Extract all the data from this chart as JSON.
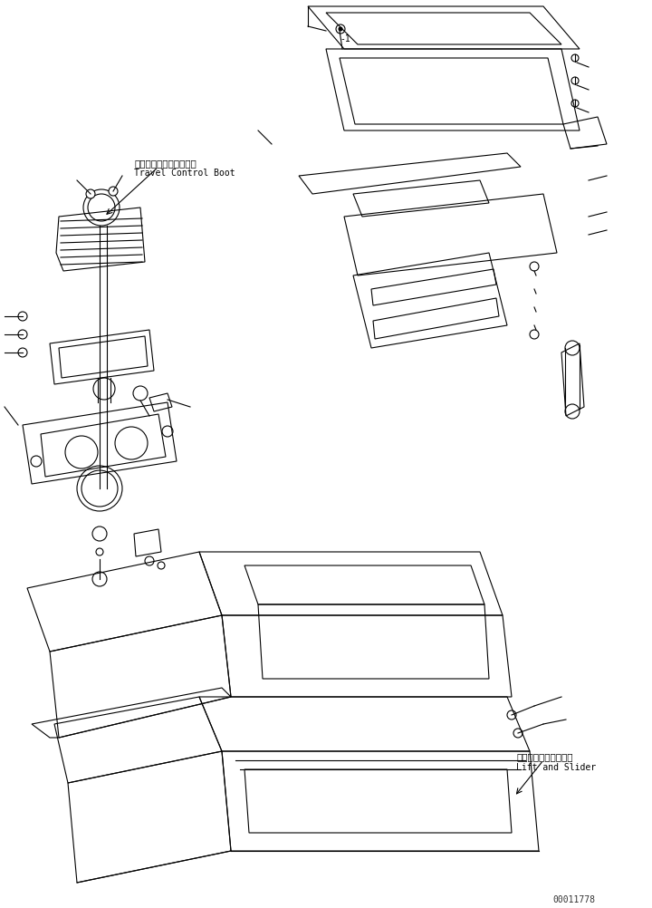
{
  "background_color": "#ffffff",
  "line_color": "#000000",
  "text_color": "#000000",
  "label1_jp": "走行コントロールブート",
  "label1_en": "Travel Control Boot",
  "label2_jp": "リフトおよびスライダ",
  "label2_en": "Lift and Slider",
  "watermark": "00011778",
  "fig_width": 7.2,
  "fig_height": 10.03,
  "dpi": 100
}
